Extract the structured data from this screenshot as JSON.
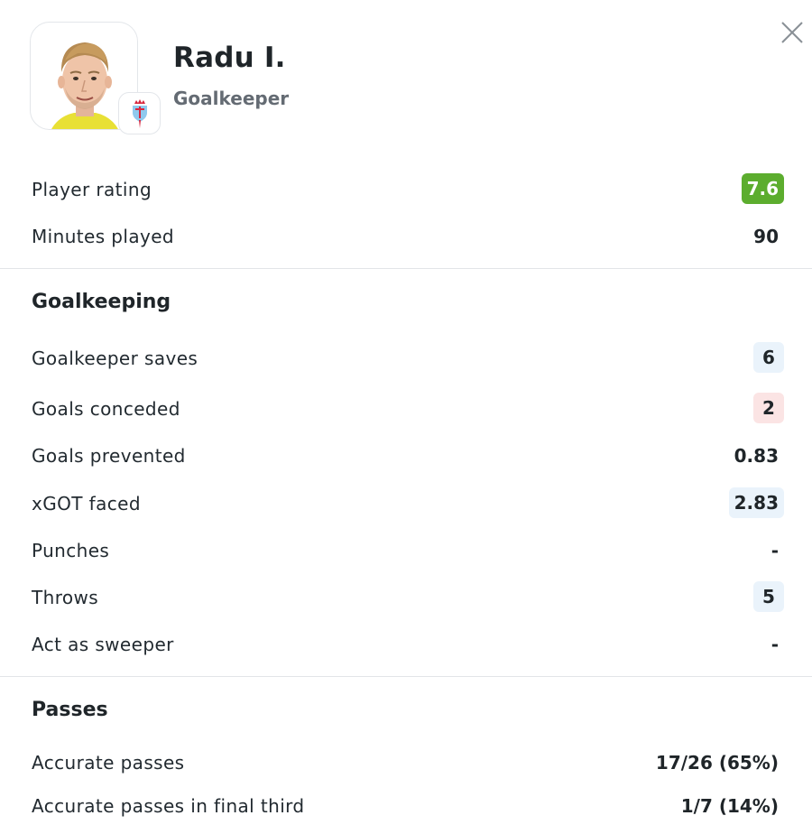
{
  "player": {
    "name": "Radu I.",
    "position": "Goalkeeper",
    "club_colors": {
      "primary": "#d7263d",
      "secondary": "#8fc9ee"
    }
  },
  "summary": [
    {
      "label": "Player rating",
      "value": "7.6",
      "style": "rating"
    },
    {
      "label": "Minutes played",
      "value": "90",
      "style": "plain"
    }
  ],
  "sections": [
    {
      "title": "Goalkeeping",
      "rows": [
        {
          "label": "Goalkeeper saves",
          "value": "6",
          "style": "blue"
        },
        {
          "label": "Goals conceded",
          "value": "2",
          "style": "red"
        },
        {
          "label": "Goals prevented",
          "value": "0.83",
          "style": "plain"
        },
        {
          "label": "xGOT faced",
          "value": "2.83",
          "style": "blue"
        },
        {
          "label": "Punches",
          "value": "-",
          "style": "plain"
        },
        {
          "label": "Throws",
          "value": "5",
          "style": "blue"
        },
        {
          "label": "Act as sweeper",
          "value": "-",
          "style": "plain"
        }
      ]
    },
    {
      "title": "Passes",
      "rows": [
        {
          "label": "Accurate passes",
          "value": "17/26 (65%)",
          "style": "plain"
        },
        {
          "label": "Accurate passes in final third",
          "value": "1/7 (14%)",
          "style": "plain"
        }
      ]
    }
  ],
  "icons": {
    "close": "close-icon",
    "photo": "player-photo",
    "club": "club-crest-icon"
  },
  "colors": {
    "rating_green": "#5cad2e",
    "highlight_blue": "#eaf3fb",
    "highlight_red": "#fbe4e4"
  }
}
